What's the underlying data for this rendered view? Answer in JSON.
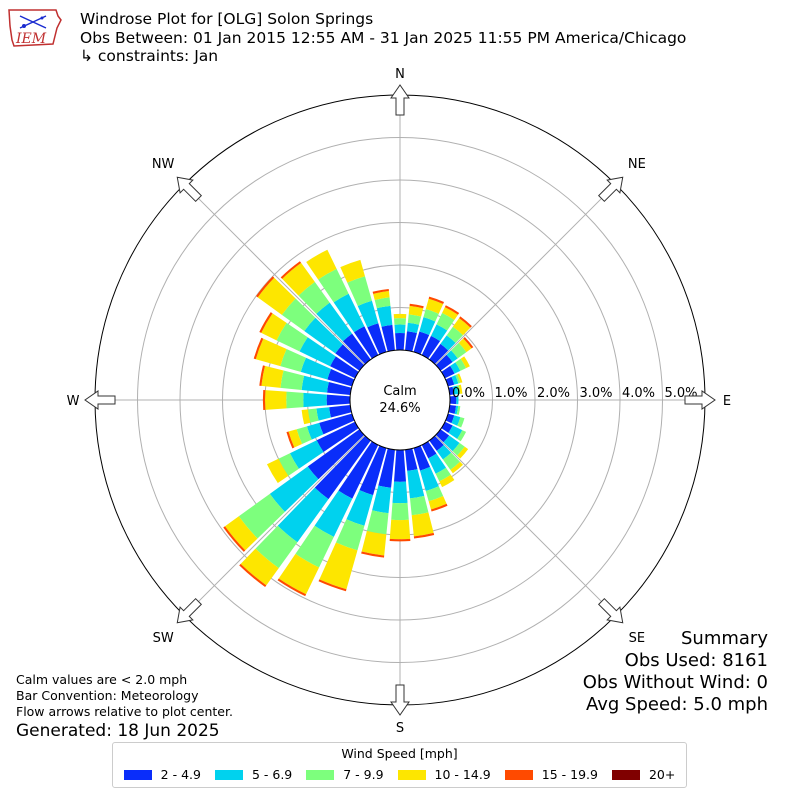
{
  "logo": {
    "text": "IEM"
  },
  "title": {
    "line1": "Windrose Plot for [OLG] Solon Springs",
    "line2": "Obs Between: 01 Jan 2015 12:55 AM - 31 Jan 2025 11:55 PM America/Chicago",
    "line3": "↳ constraints: Jan"
  },
  "notes": {
    "calm_def": "Calm values are < 2.0 mph",
    "bar_conv": "Bar Convention: Meteorology",
    "flow": "Flow arrows relative to plot center.",
    "generated": "Generated: 18 Jun 2025"
  },
  "summary": {
    "heading": "Summary",
    "obs_used": "Obs Used: 8161",
    "obs_without_wind": "Obs Without Wind: 0",
    "avg_speed": "Avg Speed: 5.0 mph"
  },
  "legend": {
    "title": "Wind Speed [mph]",
    "items": [
      {
        "label": "2 - 4.9",
        "color": "#0a2dfa"
      },
      {
        "label": "5 - 6.9",
        "color": "#00d2ee"
      },
      {
        "label": "7 - 9.9",
        "color": "#7dff7d"
      },
      {
        "label": "10 - 14.9",
        "color": "#fde600"
      },
      {
        "label": "15 - 19.9",
        "color": "#ff4a00"
      },
      {
        "label": "20+",
        "color": "#800000"
      }
    ]
  },
  "chart_data": {
    "type": "windrose",
    "calm": {
      "label": "Calm",
      "value": "24.6%"
    },
    "radial_ticks": [
      "0.0%",
      "1.0%",
      "2.0%",
      "3.0%",
      "4.0%",
      "5.0%"
    ],
    "radial_max_percent": 6.0,
    "compass_labels": [
      "N",
      "NE",
      "E",
      "SE",
      "S",
      "SW",
      "W",
      "NW"
    ],
    "speed_bins": [
      "2 - 4.9",
      "5 - 6.9",
      "7 - 9.9",
      "10 - 14.9",
      "15 - 19.9",
      "20+"
    ],
    "directions_deg": [
      0,
      10,
      20,
      30,
      40,
      50,
      60,
      70,
      80,
      90,
      100,
      110,
      120,
      130,
      140,
      150,
      160,
      170,
      180,
      190,
      200,
      210,
      220,
      230,
      240,
      250,
      260,
      270,
      280,
      290,
      300,
      310,
      320,
      330,
      340,
      350
    ],
    "cumulative_percent": [
      [
        0.4,
        0.6,
        0.75,
        0.85,
        0.85,
        0.85
      ],
      [
        0.45,
        0.65,
        0.85,
        1.05,
        1.1,
        1.1
      ],
      [
        0.5,
        0.85,
        1.05,
        1.3,
        1.35,
        1.35
      ],
      [
        0.5,
        0.8,
        1.1,
        1.25,
        1.3,
        1.3
      ],
      [
        0.45,
        0.7,
        0.95,
        1.2,
        1.25,
        1.25
      ],
      [
        0.35,
        0.5,
        0.75,
        0.9,
        0.95,
        0.95
      ],
      [
        0.25,
        0.4,
        0.55,
        0.65,
        0.65,
        0.65
      ],
      [
        0.15,
        0.25,
        0.3,
        0.35,
        0.35,
        0.35
      ],
      [
        0.1,
        0.2,
        0.25,
        0.3,
        0.3,
        0.3
      ],
      [
        0.15,
        0.2,
        0.2,
        0.2,
        0.2,
        0.2
      ],
      [
        0.15,
        0.2,
        0.25,
        0.25,
        0.25,
        0.25
      ],
      [
        0.15,
        0.3,
        0.4,
        0.4,
        0.4,
        0.4
      ],
      [
        0.2,
        0.45,
        0.55,
        0.55,
        0.55,
        0.55
      ],
      [
        0.25,
        0.55,
        0.7,
        0.8,
        0.8,
        0.8
      ],
      [
        0.3,
        0.55,
        0.85,
        0.95,
        0.95,
        0.95
      ],
      [
        0.35,
        0.75,
        0.95,
        1.1,
        1.1,
        1.1
      ],
      [
        0.55,
        1.05,
        1.3,
        1.5,
        1.55,
        1.55
      ],
      [
        0.5,
        1.15,
        1.55,
        2.05,
        2.1,
        2.1
      ],
      [
        0.75,
        1.25,
        1.65,
        2.1,
        2.15,
        2.15
      ],
      [
        0.9,
        1.5,
        2.0,
        2.5,
        2.55,
        2.55
      ],
      [
        1.15,
        1.9,
        2.5,
        3.45,
        3.5,
        3.5
      ],
      [
        1.4,
        2.4,
        3.2,
        3.9,
        3.95,
        3.95
      ],
      [
        1.7,
        2.95,
        3.7,
        4.2,
        4.25,
        4.25
      ],
      [
        1.5,
        2.6,
        3.5,
        3.9,
        3.95,
        3.95
      ],
      [
        1.0,
        1.7,
        2.0,
        2.3,
        2.3,
        2.3
      ],
      [
        0.8,
        1.1,
        1.35,
        1.55,
        1.6,
        1.6
      ],
      [
        0.5,
        0.8,
        1.0,
        1.15,
        1.15,
        1.15
      ],
      [
        0.55,
        1.1,
        1.5,
        2.0,
        2.05,
        2.05
      ],
      [
        0.55,
        1.15,
        1.65,
        2.1,
        2.15,
        2.15
      ],
      [
        0.6,
        1.25,
        1.75,
        2.35,
        2.4,
        2.4
      ],
      [
        0.65,
        1.45,
        2.05,
        2.45,
        2.5,
        2.5
      ],
      [
        0.7,
        1.6,
        2.25,
        2.95,
        3.0,
        3.0
      ],
      [
        0.75,
        1.65,
        2.25,
        2.8,
        2.85,
        2.85
      ],
      [
        0.75,
        1.6,
        2.25,
        2.75,
        2.75,
        2.75
      ],
      [
        0.7,
        1.25,
        1.85,
        2.25,
        2.25,
        2.25
      ],
      [
        0.6,
        1.05,
        1.25,
        1.4,
        1.45,
        1.45
      ]
    ]
  }
}
